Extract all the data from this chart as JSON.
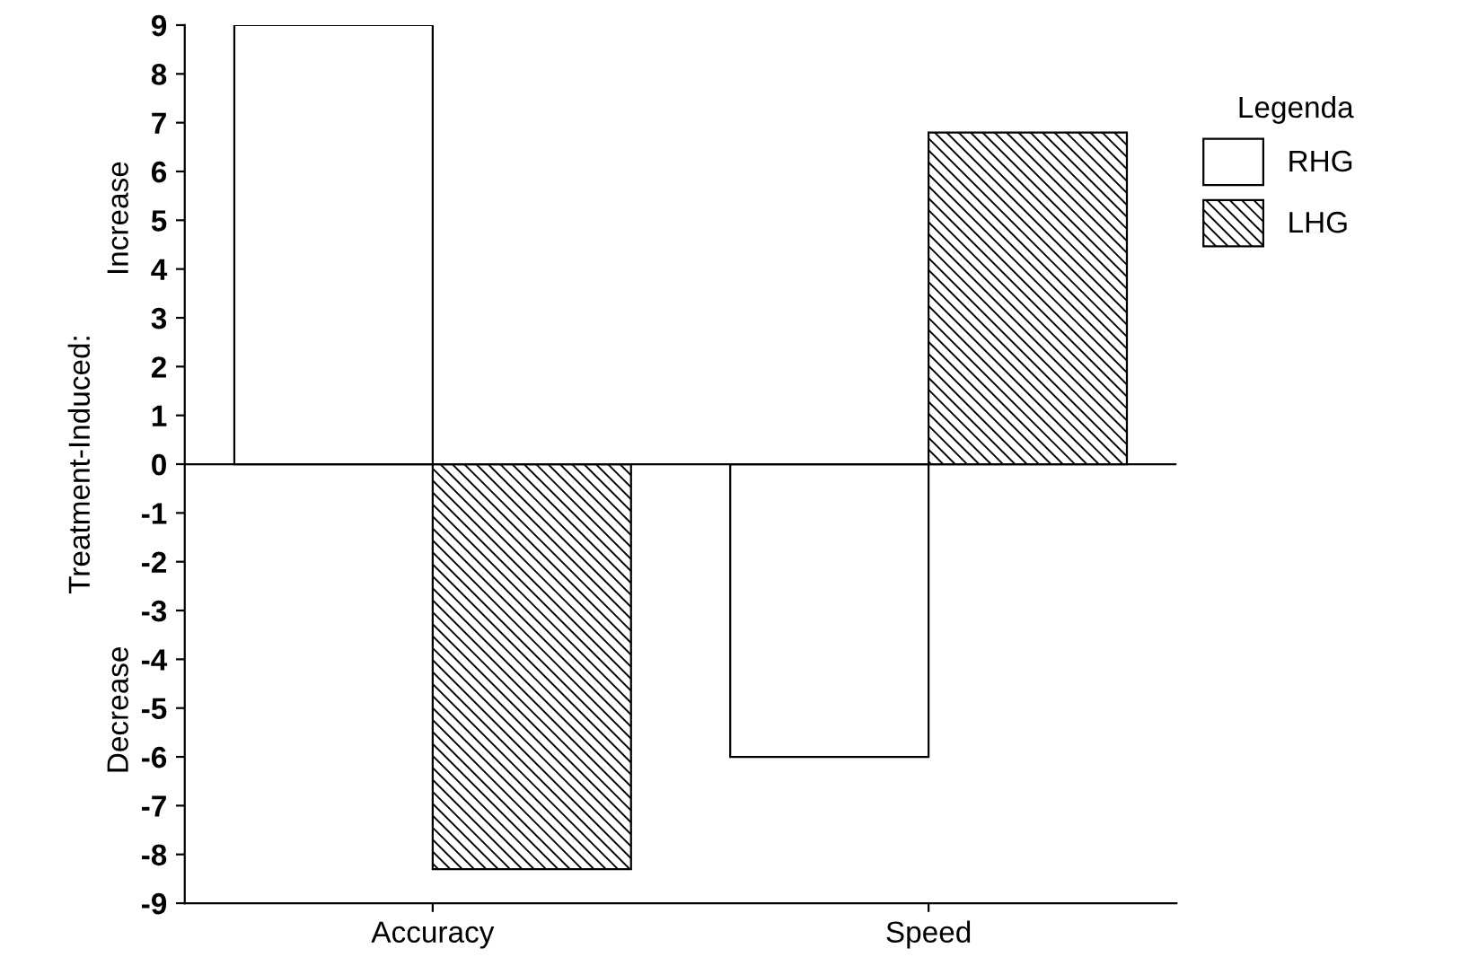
{
  "chart_data": {
    "type": "bar",
    "categories": [
      "Accuracy",
      "Speed"
    ],
    "series": [
      {
        "name": "RHG",
        "color": "#ffffff",
        "values": [
          9,
          -6.0
        ]
      },
      {
        "name": "LHG",
        "color": "#000000",
        "values": [
          -8.3,
          6.8
        ]
      }
    ],
    "ylabel": "Treatment-Induced:",
    "annotations": [
      "Increase",
      "Decrease"
    ],
    "legend_title": "Legenda",
    "legend": "right",
    "ylim": [
      -9,
      9
    ],
    "yticks": [
      9,
      8,
      7,
      6,
      5,
      4,
      3,
      2,
      1,
      0,
      -1,
      -2,
      -3,
      -4,
      -5,
      -6,
      -7,
      -8,
      -9
    ],
    "ref_lines": [
      {
        "axis": "y",
        "value": 0,
        "label": null
      }
    ],
    "grid": false
  }
}
